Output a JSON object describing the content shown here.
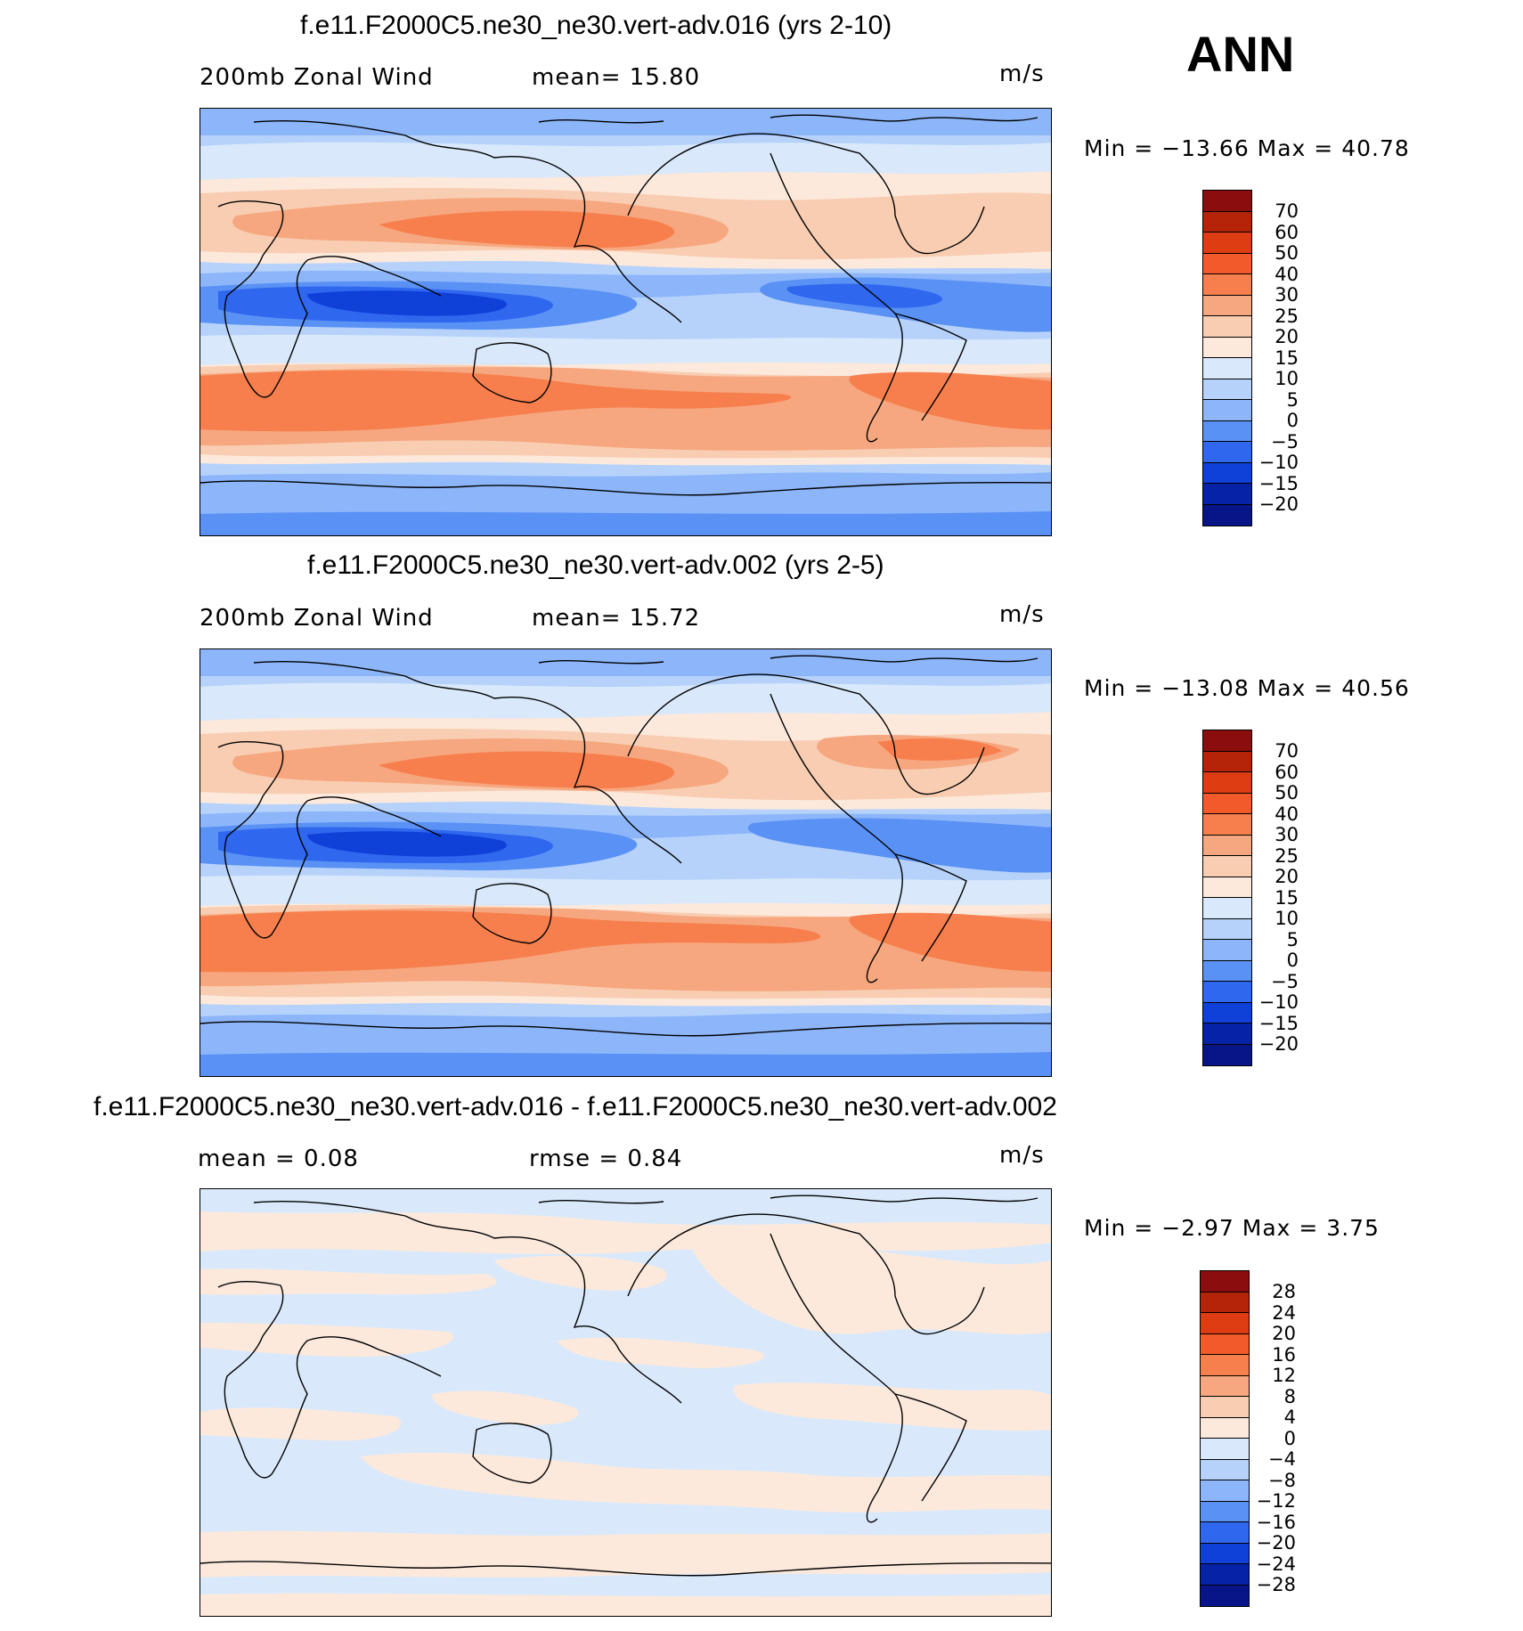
{
  "season": "ANN",
  "panels": [
    {
      "title": "f.e11.F2000C5.ne30_ne30.vert-adv.016 (yrs 2-10)",
      "left_label": "200mb Zonal Wind",
      "mid_label": "mean=   15.80",
      "units": "m/s",
      "stats": "Min  =  −13.66  Max  =    40.78",
      "colorbar_ticks": [
        "70",
        "60",
        "50",
        "40",
        "30",
        "25",
        "20",
        "15",
        "10",
        "5",
        "0",
        "−5",
        "−10",
        "−15",
        "−20"
      ]
    },
    {
      "title": "f.e11.F2000C5.ne30_ne30.vert-adv.002 (yrs 2-5)",
      "left_label": "200mb Zonal Wind",
      "mid_label": "mean=   15.72",
      "units": "m/s",
      "stats": "Min  =  −13.08  Max  =    40.56",
      "colorbar_ticks": [
        "70",
        "60",
        "50",
        "40",
        "30",
        "25",
        "20",
        "15",
        "10",
        "5",
        "0",
        "−5",
        "−10",
        "−15",
        "−20"
      ]
    },
    {
      "title": "f.e11.F2000C5.ne30_ne30.vert-adv.016 - f.e11.F2000C5.ne30_ne30.vert-adv.002",
      "left_label": "mean =     0.08",
      "mid_label": "rmse =     0.84",
      "units": "m/s",
      "stats": "Min  =    −2.97  Max  =     3.75",
      "colorbar_ticks": [
        "28",
        "24",
        "20",
        "16",
        "12",
        "8",
        "4",
        "0",
        "−4",
        "−8",
        "−12",
        "−16",
        "−20",
        "−24",
        "−28"
      ]
    }
  ],
  "colors": {
    "palette": [
      "#8c0d0d",
      "#b52409",
      "#de3c12",
      "#f35a2a",
      "#f77f4d",
      "#f6a77f",
      "#f8cdb2",
      "#fce9dc",
      "#d9e9fb",
      "#b6d2fa",
      "#8db6fa",
      "#5a91f5",
      "#2f67ef",
      "#0f40d8",
      "#0622a7",
      "#071588"
    ],
    "land": "none",
    "coast": "#000000"
  }
}
